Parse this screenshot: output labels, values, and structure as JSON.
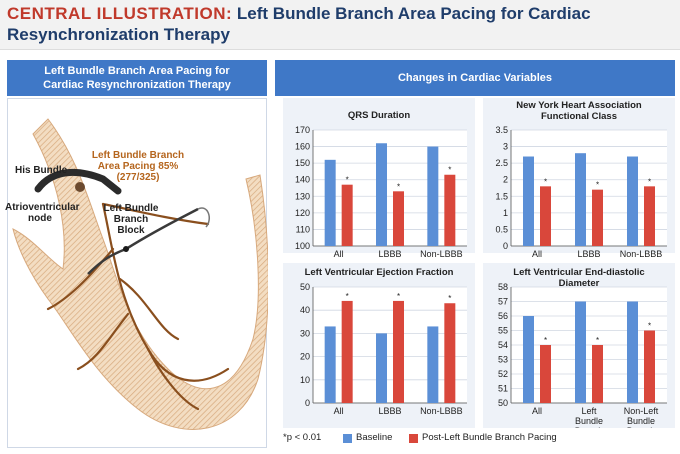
{
  "header": {
    "prefix": "CENTRAL ILLUSTRATION:",
    "title_line1": "Left Bundle Branch Area Pacing for Cardiac",
    "title_line2": "Resynchronization Therapy"
  },
  "left_panel": {
    "title": "Left Bundle Branch Area Pacing for Cardiac Resynchronization Therapy",
    "labels": {
      "his_bundle": "His Bundle",
      "av_node_1": "Atrioventricular",
      "av_node_2": "node",
      "lbbap_1": "Left Bundle Branch",
      "lbbap_2": "Area Pacing 85%",
      "lbbap_3": "(277/325)",
      "lbbb_1": "Left Bundle",
      "lbbb_2": "Branch",
      "lbbb_3": "Block"
    }
  },
  "right_panel": {
    "title": "Changes in Cardiac Variables"
  },
  "legend": {
    "note": "*p < 0.01",
    "baseline": "Baseline",
    "post": "Post-Left Bundle Branch Pacing",
    "colors": {
      "baseline": "#5b8fd6",
      "post": "#d9473b"
    }
  },
  "chart_data": [
    {
      "type": "bar",
      "title": "QRS Duration",
      "categories": [
        "All",
        "LBBB",
        "Non-LBBB"
      ],
      "ylim": [
        100,
        170
      ],
      "yticks": [
        100,
        110,
        120,
        130,
        140,
        150,
        160,
        170
      ],
      "series": [
        {
          "name": "Baseline",
          "values": [
            152,
            162,
            160
          ]
        },
        {
          "name": "Post-Left Bundle Branch Pacing",
          "values": [
            137,
            133,
            143
          ]
        }
      ],
      "significance": [
        true,
        true,
        true
      ]
    },
    {
      "type": "bar",
      "title": "New York Heart Association Functional Class",
      "categories": [
        "All",
        "LBBB",
        "Non-LBBB"
      ],
      "ylim": [
        0,
        3.5
      ],
      "yticks": [
        0,
        0.5,
        1,
        1.5,
        2,
        2.5,
        3,
        3.5
      ],
      "series": [
        {
          "name": "Baseline",
          "values": [
            2.7,
            2.8,
            2.7
          ]
        },
        {
          "name": "Post-Left Bundle Branch Pacing",
          "values": [
            1.8,
            1.7,
            1.8
          ]
        }
      ],
      "significance": [
        true,
        true,
        true
      ]
    },
    {
      "type": "bar",
      "title": "Left Ventricular Ejection Fraction",
      "categories": [
        "All",
        "LBBB",
        "Non-LBBB"
      ],
      "ylim": [
        0,
        50
      ],
      "yticks": [
        0,
        10,
        20,
        30,
        40,
        50
      ],
      "series": [
        {
          "name": "Baseline",
          "values": [
            33,
            30,
            33
          ]
        },
        {
          "name": "Post-Left Bundle Branch Pacing",
          "values": [
            44,
            44,
            43
          ]
        }
      ],
      "significance": [
        true,
        true,
        true
      ]
    },
    {
      "type": "bar",
      "title": "Left Ventricular End-diastolic Diameter",
      "categories": [
        "All",
        "Left Bundle Branch Block",
        "Non-Left Bundle Branch Block"
      ],
      "ylim": [
        50,
        58
      ],
      "yticks": [
        50,
        51,
        52,
        53,
        54,
        55,
        56,
        57,
        58
      ],
      "series": [
        {
          "name": "Baseline",
          "values": [
            56,
            57,
            57
          ]
        },
        {
          "name": "Post-Left Bundle Branch Pacing",
          "values": [
            54,
            54,
            55
          ]
        }
      ],
      "significance": [
        true,
        true,
        true
      ]
    }
  ]
}
